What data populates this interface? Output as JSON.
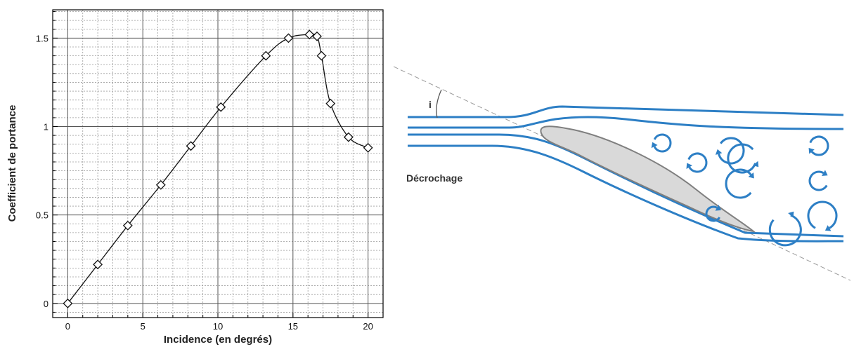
{
  "chart_data": {
    "type": "line",
    "title": "",
    "xlabel": "Incidence (en degrés)",
    "ylabel": "Coefficient de portance",
    "xlim": [
      -1,
      21
    ],
    "ylim": [
      -0.08,
      1.66
    ],
    "xticks": [
      0,
      5,
      10,
      15,
      20
    ],
    "xtick_labels": [
      "0",
      "5",
      "10",
      "15",
      "20"
    ],
    "yticks": [
      0,
      0.5,
      1,
      1.5
    ],
    "ytick_labels": [
      "0",
      "0.5",
      "1",
      "1.5"
    ],
    "grid": true,
    "marker": "diamond",
    "series": [
      {
        "x": [
          0,
          2,
          4,
          6.2,
          8.2,
          10.2,
          13.2,
          14.7,
          16.1,
          16.6,
          16.9,
          17.5,
          18.7,
          20
        ],
        "y": [
          0,
          0.22,
          0.44,
          0.67,
          0.89,
          1.11,
          1.4,
          1.5,
          1.52,
          1.51,
          1.4,
          1.13,
          0.94,
          0.88
        ]
      }
    ]
  },
  "diagram": {
    "label": "Décrochage",
    "angle_label": "i",
    "colors": {
      "streamline": "#2d7fc5",
      "airfoil_fill": "#d9d9d9",
      "airfoil_stroke": "#7f7f7f",
      "chord_line": "#9a9a9a"
    }
  }
}
